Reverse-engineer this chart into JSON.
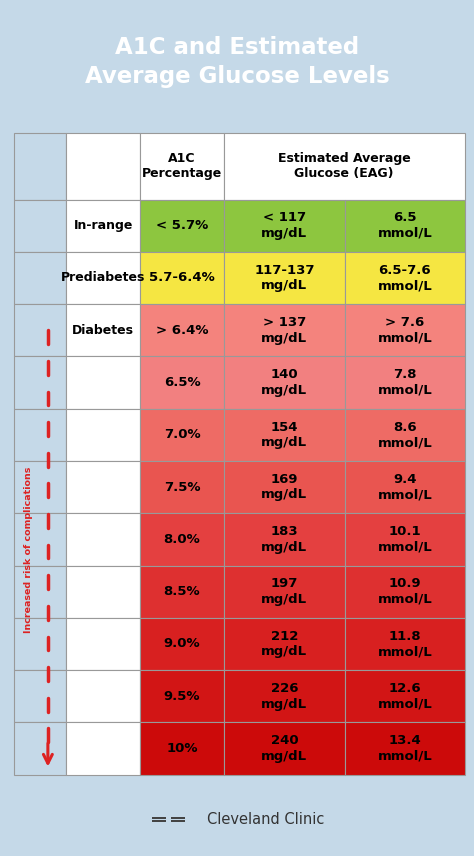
{
  "title": "A1C and Estimated\nAverage Glucose Levels",
  "title_color": "#ffffff",
  "header_bg": "#1E9CD7",
  "light_bg": "#C5D9E8",
  "rows": [
    {
      "label": "In-range",
      "a1c": "< 5.7%",
      "mgdl": "< 117\nmg/dL",
      "mmol": "6.5\nmmol/L",
      "label_color": "#ffffff",
      "data_color": "#8DC63F"
    },
    {
      "label": "Prediabetes",
      "a1c": "5.7-6.4%",
      "mgdl": "117-137\nmg/dL",
      "mmol": "6.5-7.6\nmmol/L",
      "label_color": "#ffffff",
      "data_color": "#F5E642"
    },
    {
      "label": "Diabetes",
      "a1c": "> 6.4%",
      "mgdl": "> 137\nmg/dL",
      "mmol": "> 7.6\nmmol/L",
      "label_color": "#ffffff",
      "data_color": "#F4837D"
    },
    {
      "label": "",
      "a1c": "6.5%",
      "mgdl": "140\nmg/dL",
      "mmol": "7.8\nmmol/L",
      "label_color": "#ffffff",
      "data_color": "#F28080"
    },
    {
      "label": "",
      "a1c": "7.0%",
      "mgdl": "154\nmg/dL",
      "mmol": "8.6\nmmol/L",
      "label_color": "#ffffff",
      "data_color": "#EE6B65"
    },
    {
      "label": "",
      "a1c": "7.5%",
      "mgdl": "169\nmg/dL",
      "mmol": "9.4\nmmol/L",
      "label_color": "#ffffff",
      "data_color": "#E95550"
    },
    {
      "label": "",
      "a1c": "8.0%",
      "mgdl": "183\nmg/dL",
      "mmol": "10.1\nmmol/L",
      "label_color": "#ffffff",
      "data_color": "#E44040"
    },
    {
      "label": "",
      "a1c": "8.5%",
      "mgdl": "197\nmg/dL",
      "mmol": "10.9\nmmol/L",
      "label_color": "#ffffff",
      "data_color": "#DE3030"
    },
    {
      "label": "",
      "a1c": "9.0%",
      "mgdl": "212\nmg/dL",
      "mmol": "11.8\nmmol/L",
      "label_color": "#ffffff",
      "data_color": "#D82020"
    },
    {
      "label": "",
      "a1c": "9.5%",
      "mgdl": "226\nmg/dL",
      "mmol": "12.6\nmmol/L",
      "label_color": "#ffffff",
      "data_color": "#D21515"
    },
    {
      "label": "",
      "a1c": "10%",
      "mgdl": "240\nmg/dL",
      "mmol": "13.4\nmmol/L",
      "label_color": "#ffffff",
      "data_color": "#CC0A0A"
    }
  ],
  "arrow_text": "Increased risk of complications",
  "arrow_color": "#DD2222",
  "clinic_text": "Cleveland Clinic",
  "border_color": "#999999",
  "header_text_color": "#000000",
  "label_text_color": "#000000"
}
